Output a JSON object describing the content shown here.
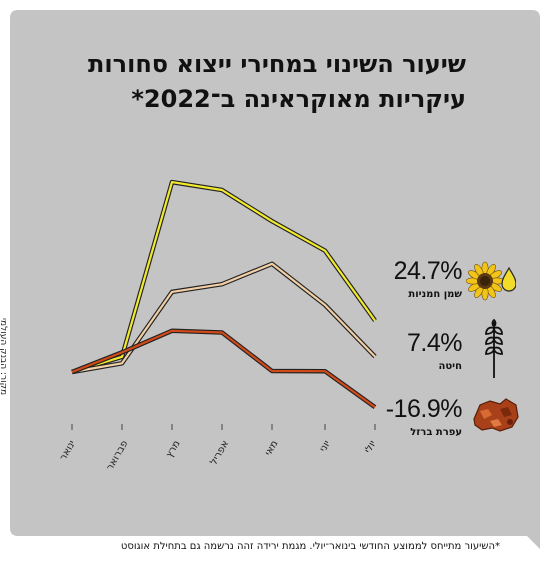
{
  "chart_data": {
    "type": "line",
    "title": "שיעור השינוי במחירי ייצוא סחורות עיקריות מאוקראינה ב־2022*",
    "title_lines": [
      "שיעור השינוי במחירי ייצוא סחורות",
      "עיקריות מאוקראינה ב־2022*"
    ],
    "categories": [
      "ינואר",
      "פברואר",
      "מרץ",
      "אפריל",
      "מאי",
      "יוני",
      "יולי"
    ],
    "series": [
      {
        "name": "שמן חמניות",
        "label": "24.7%",
        "color": "#f2ea2c",
        "values": [
          0,
          7.3,
          91.3,
          87.5,
          72.5,
          58.3,
          24.7
        ]
      },
      {
        "name": "חיטה",
        "label": "7.4%",
        "color": "#f2cfa4",
        "values": [
          0,
          4.2,
          38.5,
          42.2,
          52.0,
          32.2,
          7.4
        ]
      },
      {
        "name": "עפרת ברזל",
        "label": "-16.9%",
        "color": "#d24a18",
        "values": [
          0,
          9.4,
          19.8,
          19.0,
          0.5,
          0.4,
          -16.9
        ]
      }
    ],
    "ylim": [
      -20,
      100
    ],
    "grid": false,
    "legend": "right"
  },
  "source": "מקור: הבנק העולמי",
  "footnote": "*השיעור מתייחס לממוצע החודשי בינואר־יולי. מגמת ירידה זהה נרשמה גם בתחילת אוגוסט",
  "colors": {
    "card": "#c4c4c4",
    "line_outline": "#222222"
  },
  "icons": [
    "sunflower-oil-icon",
    "wheat-icon",
    "iron-ore-icon"
  ]
}
